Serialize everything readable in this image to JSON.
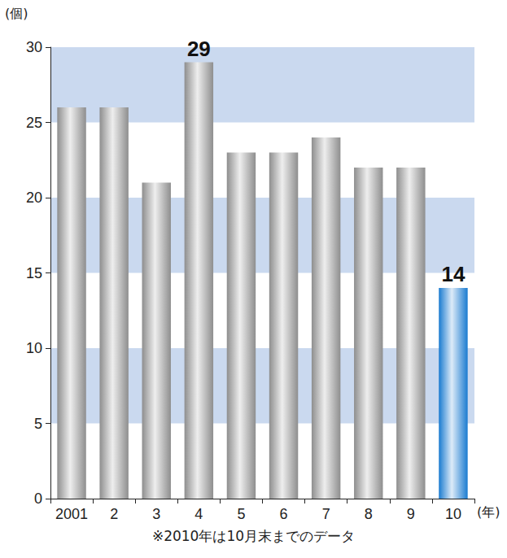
{
  "chart_data": {
    "type": "bar",
    "ylabel": "(個)",
    "xlabel": "(年)",
    "annotations": [
      "※2010年は10月末までのデータ"
    ],
    "categories": [
      "2001",
      "2",
      "3",
      "4",
      "5",
      "6",
      "7",
      "8",
      "9",
      "10"
    ],
    "values": [
      26,
      26,
      21,
      29,
      23,
      23,
      24,
      22,
      22,
      14
    ],
    "data_labels": true,
    "value_labels": [
      null,
      null,
      null,
      "29",
      null,
      null,
      null,
      null,
      null,
      "14"
    ],
    "colors": [
      "#8e8e8e",
      "#8e8e8e",
      "#8e8e8e",
      "#8e8e8e",
      "#8e8e8e",
      "#8e8e8e",
      "#8e8e8e",
      "#8e8e8e",
      "#8e8e8e",
      "#1a7bd0"
    ],
    "ylim": [
      0,
      30
    ],
    "yticks": [
      0,
      5,
      10,
      15,
      20,
      25,
      30
    ],
    "grid": true
  }
}
